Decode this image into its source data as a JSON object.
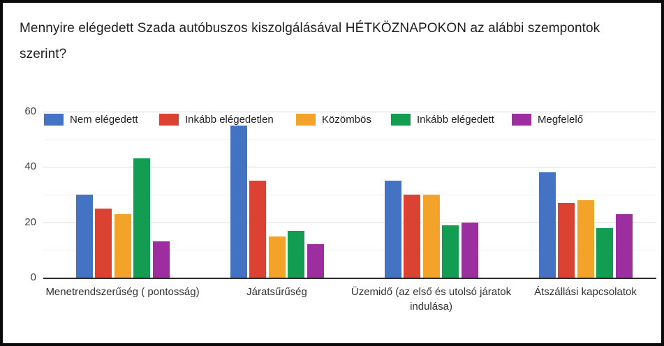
{
  "chart_data": {
    "type": "bar",
    "title": "Mennyire elégedett Szada autóbuszos kiszolgálásával HÉTKÖZNAPOKON az alábbi szempontok szerint?",
    "categories": [
      "Menetrendszerűség ( pontosság)",
      "Járatsűrűség",
      "Üzemidő (az első és utolsó járatok indulása)",
      "Átszállási kapcsolatok"
    ],
    "series": [
      {
        "name": "Nem elégedett",
        "color": "#4573C4",
        "values": [
          30,
          55,
          35,
          38
        ]
      },
      {
        "name": "Inkább elégedetlen",
        "color": "#DB4232",
        "values": [
          25,
          35,
          30,
          27
        ]
      },
      {
        "name": "Közömbös",
        "color": "#F4A32A",
        "values": [
          23,
          15,
          30,
          28
        ]
      },
      {
        "name": "Inkább elégedett",
        "color": "#129D52",
        "values": [
          43,
          17,
          19,
          18
        ]
      },
      {
        "name": "Megfelelő",
        "color": "#9D2EA0",
        "values": [
          13,
          12,
          20,
          23
        ]
      }
    ],
    "ylim": [
      0,
      60
    ],
    "yticks": [
      0,
      20,
      40,
      60
    ],
    "minor_gridlines": [
      10,
      30,
      50
    ],
    "xlabel": "",
    "ylabel": "",
    "grid": true,
    "legend_position": "top"
  },
  "frame": {
    "border_color": "#0a0a0a",
    "background_color": "#ffffff"
  }
}
